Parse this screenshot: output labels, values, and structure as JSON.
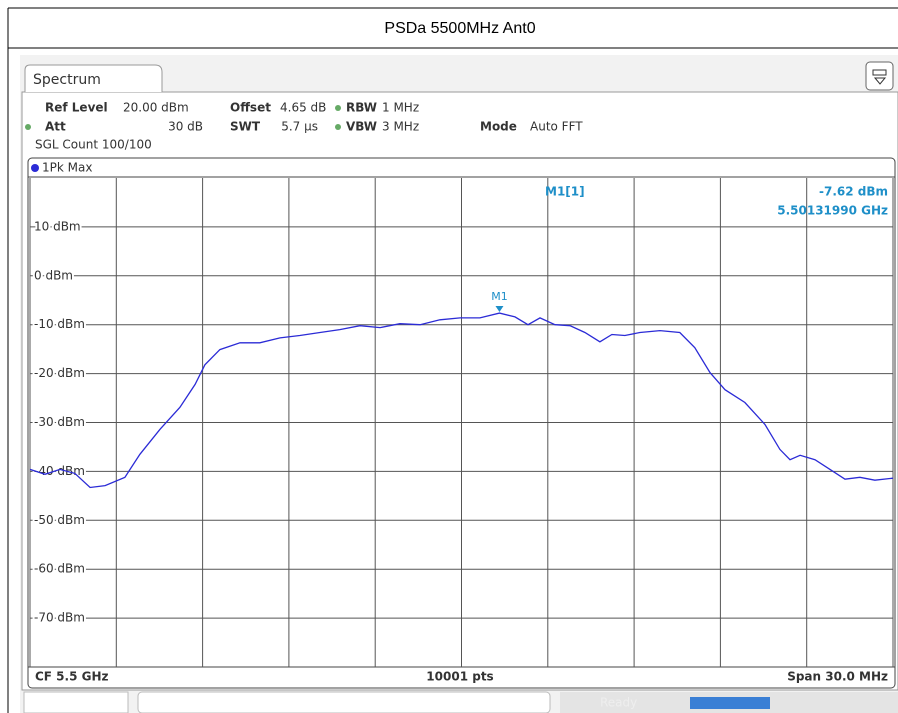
{
  "header": {
    "title": "PSDa 5500MHz Ant0"
  },
  "tab": "Spectrum",
  "settings": [
    {
      "label": "Ref Level",
      "value": "20.00 dBm"
    },
    {
      "label": "Offset",
      "value": "4.65 dB"
    },
    {
      "label": "RBW",
      "value": "1 MHz"
    },
    {
      "label": "Att",
      "value": "30 dB"
    },
    {
      "label": "SWT",
      "value": "5.7 µs"
    },
    {
      "label": "VBW",
      "value": "3 MHz"
    },
    {
      "label": "Mode",
      "value": "Auto FFT"
    }
  ],
  "count": "SGL Count 100/100",
  "footer": {
    "left": "CF 5.5 GHz",
    "center": "10001 pts",
    "right": "Span 30.0 MHz"
  },
  "status": "Ready",
  "chart_data": {
    "type": "line",
    "x": [
      5485.0,
      5485.52,
      5486.04,
      5486.56,
      5487.09,
      5487.61,
      5488.3,
      5488.82,
      5489.52,
      5490.21,
      5490.74,
      5491.08,
      5491.6,
      5492.3,
      5492.99,
      5493.69,
      5494.38,
      5495.08,
      5495.77,
      5496.47,
      5497.17,
      5497.86,
      5498.56,
      5499.25,
      5499.95,
      5500.64,
      5501.32,
      5501.86,
      5502.31,
      5502.73,
      5503.25,
      5503.77,
      5504.29,
      5504.81,
      5505.23,
      5505.68,
      5506.2,
      5506.9,
      5507.59,
      5508.11,
      5508.64,
      5509.16,
      5509.85,
      5510.55,
      5511.07,
      5511.42,
      5511.77,
      5512.29,
      5512.81,
      5513.33,
      5513.85,
      5514.37,
      5515.0
    ],
    "series": [
      {
        "name": "1Pk Max",
        "color": "#2b2bd6",
        "values": [
          -39.6,
          -40.6,
          -39.6,
          -40.4,
          -43.3,
          -42.9,
          -41.2,
          -36.5,
          -31.4,
          -26.9,
          -22.2,
          -18.2,
          -15.1,
          -13.7,
          -13.7,
          -12.7,
          -12.2,
          -11.6,
          -11.0,
          -10.2,
          -10.6,
          -9.8,
          -10.0,
          -9.0,
          -8.6,
          -8.6,
          -7.62,
          -8.4,
          -10.0,
          -8.6,
          -10.0,
          -10.2,
          -11.6,
          -13.5,
          -12.0,
          -12.2,
          -11.6,
          -11.2,
          -11.6,
          -14.7,
          -19.8,
          -23.3,
          -25.9,
          -30.4,
          -35.5,
          -37.6,
          -36.7,
          -37.6,
          -39.6,
          -41.6,
          -41.2,
          -41.8,
          -41.4
        ]
      }
    ],
    "xlim": [
      5485,
      5515
    ],
    "xticks": [
      5485,
      5488,
      5491,
      5494,
      5497,
      5500,
      5503,
      5506,
      5509,
      5512,
      5515
    ],
    "ylim": [
      -80,
      20
    ],
    "yticks": [
      {
        "value": 10,
        "label": "10 dBm"
      },
      {
        "value": 0,
        "label": "0 dBm"
      },
      {
        "value": -10,
        "label": "-10 dBm"
      },
      {
        "value": -20,
        "label": "-20 dBm"
      },
      {
        "value": -30,
        "label": "-30 dBm"
      },
      {
        "value": -40,
        "label": "-40 dBm"
      },
      {
        "value": -50,
        "label": "-50 dBm"
      },
      {
        "value": -60,
        "label": "-60 dBm"
      },
      {
        "value": -70,
        "label": "-70 dBm"
      }
    ],
    "grid": true,
    "marker": {
      "name": "M1",
      "readout": "M1[1]",
      "x": 5501.32,
      "value": -7.62,
      "value_label": "-7.62 dBm",
      "x_label": "5.50131990 GHz",
      "color": "#1e8fc8"
    }
  }
}
